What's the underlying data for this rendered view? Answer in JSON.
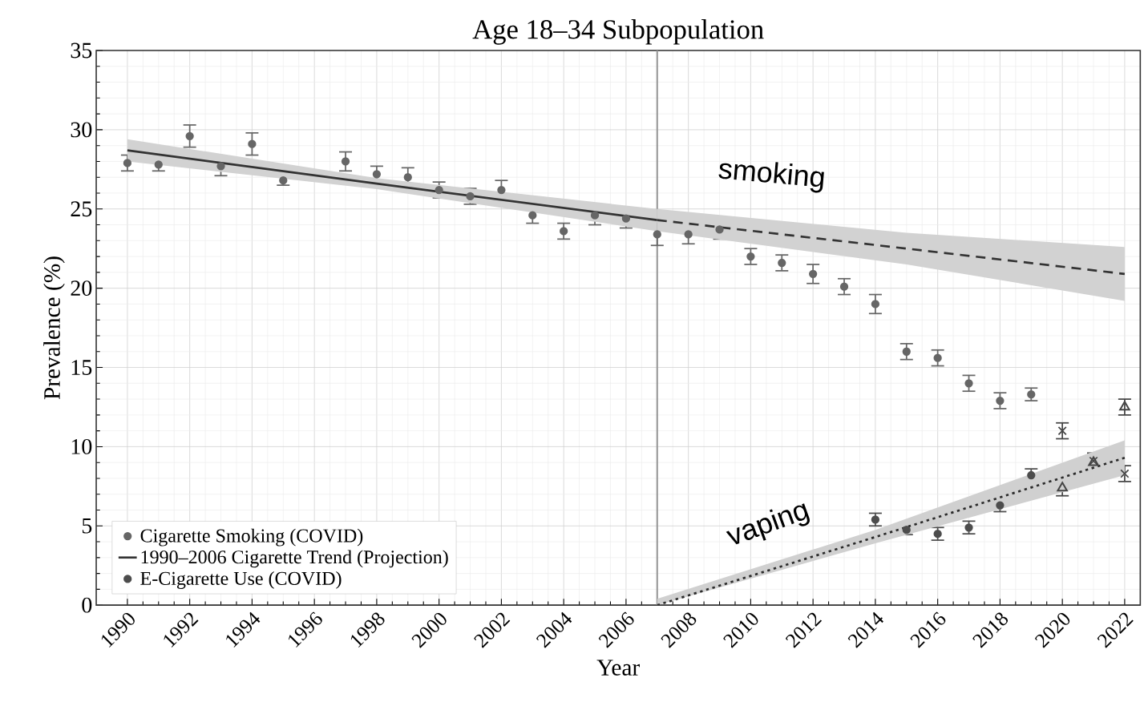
{
  "chart_data": {
    "type": "scatter",
    "title": "Age 18–34 Subpopulation",
    "xlabel": "Year",
    "ylabel": "Prevalence (%)",
    "xlim": [
      1989,
      2022.5
    ],
    "ylim": [
      0,
      35
    ],
    "xticks": [
      1990,
      1992,
      1994,
      1996,
      1998,
      2000,
      2002,
      2004,
      2006,
      2008,
      2010,
      2012,
      2014,
      2016,
      2018,
      2020,
      2022
    ],
    "yticks": [
      0,
      5,
      10,
      15,
      20,
      25,
      30,
      35
    ],
    "grid": true,
    "legend": "bottom left",
    "ref_lines": [
      {
        "axis": "x",
        "value": 2007,
        "color": "#999999"
      }
    ],
    "annotations": [
      "smoking",
      "vaping"
    ],
    "series": [
      {
        "name": "Cigarette Smoking (COVID)",
        "marker": "circle",
        "color": "#666666",
        "x": [
          1990,
          1991,
          1992,
          1993,
          1994,
          1995,
          1997,
          1998,
          1999,
          2000,
          2001,
          2002,
          2003,
          2004,
          2005,
          2006,
          2007,
          2008,
          2009,
          2010,
          2011,
          2012,
          2013,
          2014,
          2015,
          2016,
          2017,
          2018,
          2019
        ],
        "values": [
          27.9,
          27.8,
          29.6,
          27.7,
          29.1,
          26.8,
          28.0,
          27.2,
          27.0,
          26.2,
          25.8,
          26.2,
          24.6,
          23.6,
          24.6,
          24.4,
          23.4,
          23.4,
          23.7,
          22.0,
          21.6,
          20.9,
          20.1,
          19.0,
          16.0,
          15.6,
          14.0,
          12.9,
          13.3
        ],
        "errors": [
          0.5,
          0.4,
          0.7,
          0.6,
          0.7,
          0.3,
          0.6,
          0.5,
          0.6,
          0.5,
          0.5,
          0.6,
          0.5,
          0.5,
          0.6,
          0.6,
          0.7,
          0.6,
          0.6,
          0.5,
          0.5,
          0.6,
          0.5,
          0.6,
          0.5,
          0.5,
          0.5,
          0.5,
          0.4
        ]
      },
      {
        "marker": "cross",
        "color": "#444444",
        "x": [
          2020,
          2021,
          2022
        ],
        "values": [
          11.0,
          9.1,
          8.3
        ],
        "errors": [
          0.5,
          0.5,
          0.5
        ]
      },
      {
        "name": "1990–2006 Cigarette Trend (Projection)",
        "type": "line",
        "line_style": "solid",
        "color": "#333333",
        "x": [
          1990,
          1998,
          2007
        ],
        "values": [
          28.7,
          26.6,
          24.3
        ],
        "lower": [
          28.0,
          26.25,
          23.6
        ],
        "upper": [
          29.4,
          26.95,
          25.0
        ]
      },
      {
        "type": "line",
        "line_style": "dashed",
        "color": "#333333",
        "x": [
          2007,
          2015,
          2022
        ],
        "values": [
          24.3,
          22.5,
          20.9
        ],
        "lower": [
          23.6,
          21.5,
          19.2
        ],
        "upper": [
          25.0,
          23.5,
          22.6
        ]
      },
      {
        "name": "E-Cigarette Use (COVID)",
        "marker": "circle",
        "color": "#4d4d4d",
        "x": [
          2014,
          2015,
          2016,
          2017,
          2018,
          2019
        ],
        "values": [
          5.4,
          4.75,
          4.5,
          4.9,
          6.3,
          8.2
        ],
        "errors": [
          0.4,
          0.3,
          0.4,
          0.4,
          0.4,
          0.4
        ]
      },
      {
        "marker": "triangle",
        "color": "#444444",
        "x": [
          2020,
          2021,
          2022
        ],
        "values": [
          7.4,
          9.0,
          12.5
        ],
        "errors": [
          0.5,
          0.5,
          0.5
        ]
      },
      {
        "type": "line",
        "line_style": "dotted",
        "color": "#2b2b2b",
        "x": [
          2007,
          2014,
          2022
        ],
        "values": [
          0,
          4.3,
          9.3
        ],
        "lower": [
          0,
          3.9,
          8.2
        ],
        "upper": [
          0.4,
          4.75,
          10.4
        ]
      }
    ]
  }
}
